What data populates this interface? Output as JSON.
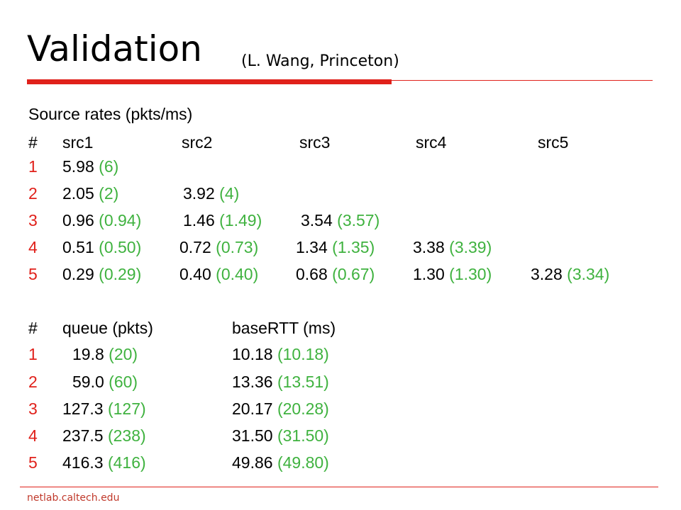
{
  "slide": {
    "title": "Validation",
    "subtitle": "(L. Wang, Princeton)",
    "footer": "netlab.caltech.edu"
  },
  "source_rates": {
    "heading": "Source rates (pkts/ms)",
    "header": [
      "#",
      "src1",
      "src2",
      "src3",
      "src4",
      "src5"
    ],
    "rows": [
      {
        "idx": "1",
        "cells": [
          {
            "v": "5.98",
            "r": "(6)"
          }
        ]
      },
      {
        "idx": "2",
        "cells": [
          {
            "v": "2.05",
            "r": "(2)"
          },
          {
            "v": "3.92",
            "r": "(4)"
          }
        ]
      },
      {
        "idx": "3",
        "cells": [
          {
            "v": "0.96",
            "r": "(0.94)"
          },
          {
            "v": "1.46",
            "r": "(1.49)"
          },
          {
            "v": "3.54",
            "r": "(3.57)"
          }
        ]
      },
      {
        "idx": "4",
        "cells": [
          {
            "v": "0.51",
            "r": "(0.50)"
          },
          {
            "v": "0.72",
            "r": "(0.73)"
          },
          {
            "v": "1.34",
            "r": "(1.35)"
          },
          {
            "v": "3.38",
            "r": "(3.39)"
          }
        ]
      },
      {
        "idx": "5",
        "cells": [
          {
            "v": "0.29",
            "r": "(0.29)"
          },
          {
            "v": "0.40",
            "r": "(0.40)"
          },
          {
            "v": "0.68",
            "r": "(0.67)"
          },
          {
            "v": "1.30",
            "r": "(1.30)"
          },
          {
            "v": "3.28",
            "r": "(3.34)"
          }
        ]
      }
    ]
  },
  "queue_table": {
    "header": [
      "#",
      "queue (pkts)",
      "baseRTT (ms)"
    ],
    "rows": [
      {
        "idx": "1",
        "queue": {
          "v": "19.8",
          "r": "(20)"
        },
        "rtt": {
          "v": "10.18",
          "r": "(10.18)"
        }
      },
      {
        "idx": "2",
        "queue": {
          "v": "59.0",
          "r": "(60)"
        },
        "rtt": {
          "v": "13.36",
          "r": "(13.51)"
        }
      },
      {
        "idx": "3",
        "queue": {
          "v": "127.3",
          "r": "(127)"
        },
        "rtt": {
          "v": "20.17",
          "r": "(20.28)"
        }
      },
      {
        "idx": "4",
        "queue": {
          "v": "237.5",
          "r": "(238)"
        },
        "rtt": {
          "v": "31.50",
          "r": "(31.50)"
        }
      },
      {
        "idx": "5",
        "queue": {
          "v": "416.3",
          "r": "(416)"
        },
        "rtt": {
          "v": "49.86",
          "r": "(49.80)"
        }
      }
    ]
  },
  "colors": {
    "accent": "#e0211b",
    "reference": "#3fb23f"
  }
}
